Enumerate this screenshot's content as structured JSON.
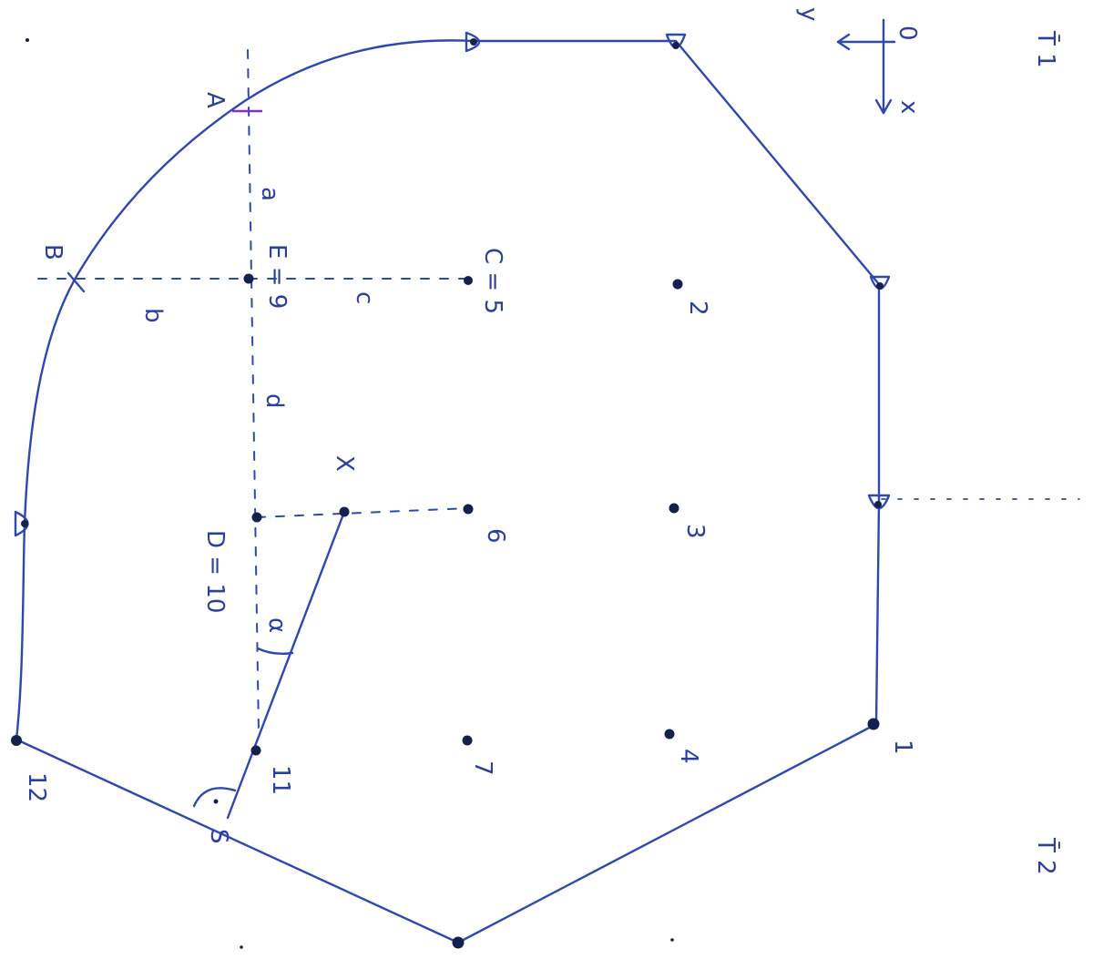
{
  "colors": {
    "ink": "#2f48b0",
    "dot": "#14204e",
    "accent": "#8a2bd0",
    "paper": "#ffffff"
  },
  "labels": {
    "A": "A",
    "B": "B",
    "a": "a",
    "b": "b",
    "c": "c",
    "d": "d",
    "E": "E = 9",
    "C": "C = 5",
    "D": "D = 10",
    "X": "X",
    "S": "S",
    "alpha": "α",
    "y_axis": "y",
    "x_axis": "x",
    "origin": "0",
    "corner_top": "T̄ 1",
    "corner_bottom": "T̄ 2"
  },
  "points": {
    "p1": "1",
    "p2": "2",
    "p3": "3",
    "p4": "4",
    "p6": "6",
    "p7": "7",
    "p11": "11",
    "p12": "12"
  }
}
